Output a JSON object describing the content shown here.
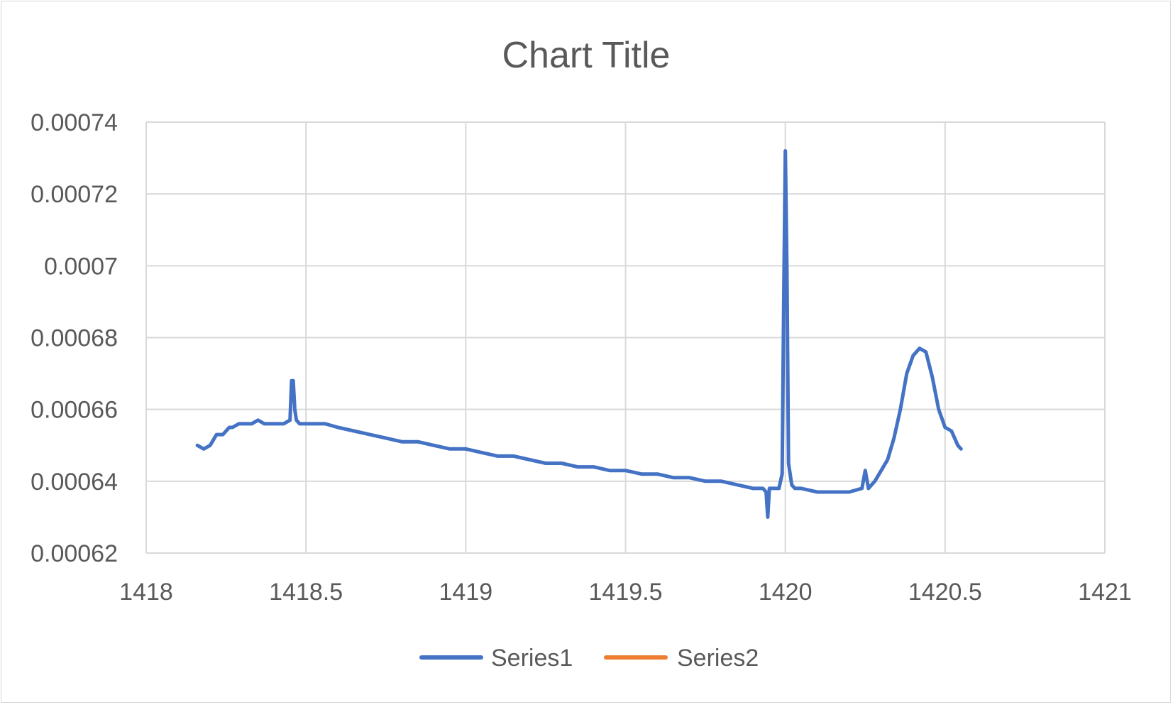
{
  "chart_data": {
    "type": "scatter",
    "title": "Chart Title",
    "xlabel": "",
    "ylabel": "",
    "xlim": [
      1418,
      1421
    ],
    "ylim": [
      0.00062,
      0.00074
    ],
    "x_ticks": [
      "1418",
      "1418.5",
      "1419",
      "1419.5",
      "1420",
      "1420.5",
      "1421"
    ],
    "y_ticks": [
      "0.00074",
      "0.00072",
      "0.0007",
      "0.00068",
      "0.00066",
      "0.00064",
      "0.00062"
    ],
    "grid": true,
    "legend_position": "bottom",
    "series": [
      {
        "name": "Series1",
        "color": "#4472c4",
        "line": true,
        "x": [
          1418.16,
          1418.18,
          1418.2,
          1418.22,
          1418.24,
          1418.26,
          1418.27,
          1418.29,
          1418.31,
          1418.33,
          1418.35,
          1418.37,
          1418.39,
          1418.41,
          1418.43,
          1418.45,
          1418.455,
          1418.46,
          1418.465,
          1418.47,
          1418.48,
          1418.5,
          1418.53,
          1418.56,
          1418.6,
          1418.65,
          1418.7,
          1418.75,
          1418.8,
          1418.85,
          1418.9,
          1418.95,
          1419.0,
          1419.05,
          1419.1,
          1419.15,
          1419.2,
          1419.25,
          1419.3,
          1419.35,
          1419.4,
          1419.45,
          1419.5,
          1419.55,
          1419.6,
          1419.65,
          1419.7,
          1419.75,
          1419.8,
          1419.85,
          1419.9,
          1419.93,
          1419.94,
          1419.945,
          1419.95,
          1419.955,
          1419.96,
          1419.97,
          1419.98,
          1419.99,
          1419.995,
          1420.0,
          1420.005,
          1420.01,
          1420.02,
          1420.03,
          1420.05,
          1420.1,
          1420.15,
          1420.2,
          1420.24,
          1420.25,
          1420.26,
          1420.28,
          1420.3,
          1420.32,
          1420.34,
          1420.36,
          1420.38,
          1420.4,
          1420.42,
          1420.44,
          1420.46,
          1420.48,
          1420.5,
          1420.52,
          1420.54,
          1420.55
        ],
        "y": [
          0.00065,
          0.000649,
          0.00065,
          0.000653,
          0.000653,
          0.000655,
          0.000655,
          0.000656,
          0.000656,
          0.000656,
          0.000657,
          0.000656,
          0.000656,
          0.000656,
          0.000656,
          0.000657,
          0.000668,
          0.000668,
          0.00066,
          0.000657,
          0.000656,
          0.000656,
          0.000656,
          0.000656,
          0.000655,
          0.000654,
          0.000653,
          0.000652,
          0.000651,
          0.000651,
          0.00065,
          0.000649,
          0.000649,
          0.000648,
          0.000647,
          0.000647,
          0.000646,
          0.000645,
          0.000645,
          0.000644,
          0.000644,
          0.000643,
          0.000643,
          0.000642,
          0.000642,
          0.000641,
          0.000641,
          0.00064,
          0.00064,
          0.000639,
          0.000638,
          0.000638,
          0.000637,
          0.00063,
          0.000638,
          0.000638,
          0.000638,
          0.000638,
          0.000638,
          0.000642,
          0.00069,
          0.000732,
          0.0007,
          0.000645,
          0.000639,
          0.000638,
          0.000638,
          0.000637,
          0.000637,
          0.000637,
          0.000638,
          0.000643,
          0.000638,
          0.00064,
          0.000643,
          0.000646,
          0.000652,
          0.00066,
          0.00067,
          0.000675,
          0.000677,
          0.000676,
          0.000669,
          0.00066,
          0.000655,
          0.000654,
          0.00065,
          0.000649
        ]
      },
      {
        "name": "Series2",
        "color": "#ed7d31",
        "line": true,
        "x": [],
        "y": []
      }
    ]
  }
}
